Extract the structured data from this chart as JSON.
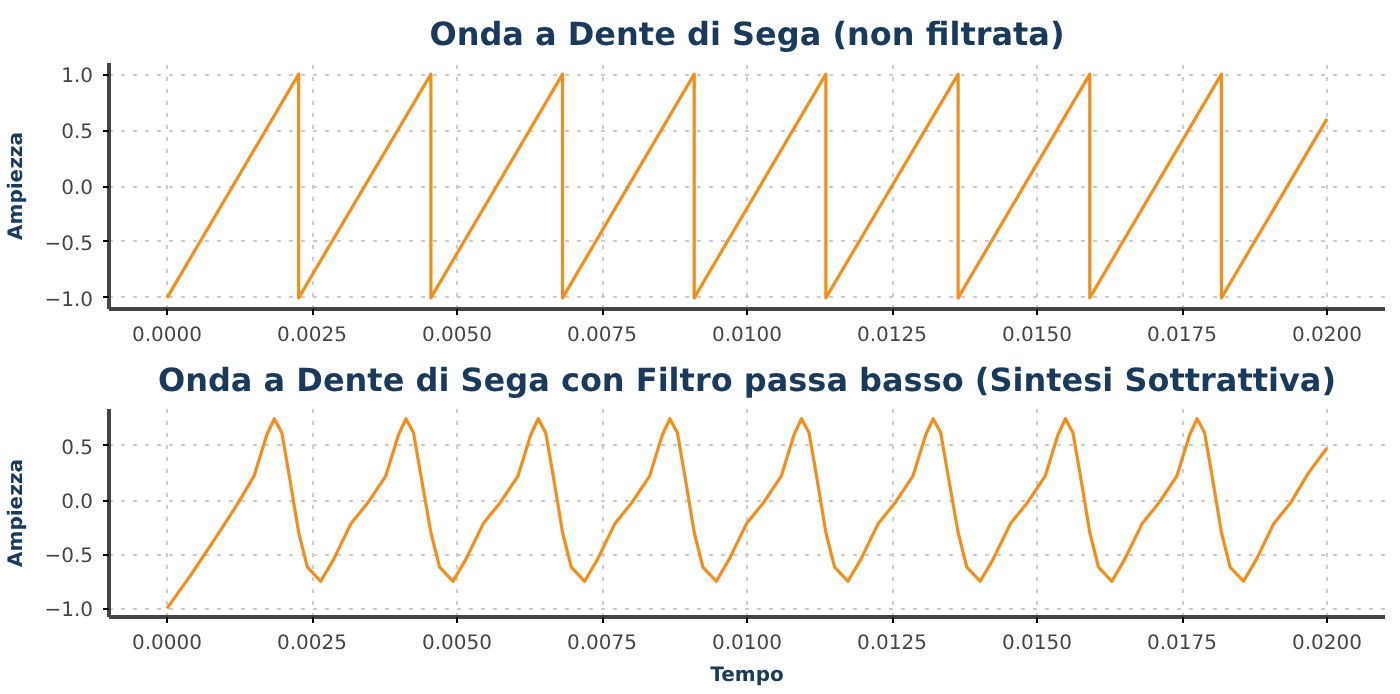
{
  "chart_data": [
    {
      "type": "line",
      "title": "Onda a Dente di Sega (non filtrata)",
      "ylabel": "Ampiezza",
      "grid": true,
      "line_style": "solid",
      "xlim": [
        -0.001,
        0.021
      ],
      "ylim": [
        -1.1,
        1.1
      ],
      "xticks": [
        {
          "value": 0,
          "label": "0.0000"
        },
        {
          "value": 0.0025,
          "label": "0.0025"
        },
        {
          "value": 0.005,
          "label": "0.0050"
        },
        {
          "value": 0.0075,
          "label": "0.0075"
        },
        {
          "value": 0.01,
          "label": "0.0100"
        },
        {
          "value": 0.0125,
          "label": "0.0125"
        },
        {
          "value": 0.015,
          "label": "0.0150"
        },
        {
          "value": 0.0175,
          "label": "0.0175"
        },
        {
          "value": 0.02,
          "label": "0.0200"
        }
      ],
      "yticks": [
        {
          "value": -1,
          "label": "−1.0"
        },
        {
          "value": -0.5,
          "label": "−0.5"
        },
        {
          "value": 0,
          "label": "0.0"
        },
        {
          "value": 0.5,
          "label": "0.5"
        },
        {
          "value": 1,
          "label": "1.0"
        }
      ],
      "series": [
        {
          "color": "#f28e1c",
          "x": [
            0,
            0.00227,
            0.00227,
            0.00455,
            0.00455,
            0.00682,
            0.00682,
            0.00909,
            0.00909,
            0.01136,
            0.01136,
            0.01364,
            0.01364,
            0.01591,
            0.01591,
            0.01818,
            0.01818,
            0.02
          ],
          "values": [
            -1,
            1,
            -1,
            1,
            -1,
            1,
            -1,
            1,
            -1,
            1,
            -1,
            1,
            -1,
            1,
            -1,
            1,
            -1,
            0.6
          ]
        }
      ]
    },
    {
      "type": "line",
      "title": "Onda a Dente di Sega con Filtro passa basso (Sintesi Sottrattiva)",
      "xlabel": "Tempo",
      "ylabel": "Ampiezza",
      "grid": true,
      "line_style": "solid",
      "xlim": [
        -0.001,
        0.021
      ],
      "ylim": [
        -1.08,
        0.84
      ],
      "xticks": [
        {
          "value": 0,
          "label": "0.0000"
        },
        {
          "value": 0.0025,
          "label": "0.0025"
        },
        {
          "value": 0.005,
          "label": "0.0050"
        },
        {
          "value": 0.0075,
          "label": "0.0075"
        },
        {
          "value": 0.01,
          "label": "0.0100"
        },
        {
          "value": 0.0125,
          "label": "0.0125"
        },
        {
          "value": 0.015,
          "label": "0.0150"
        },
        {
          "value": 0.0175,
          "label": "0.0175"
        },
        {
          "value": 0.02,
          "label": "0.0200"
        }
      ],
      "yticks": [
        {
          "value": -1,
          "label": "−1.0"
        },
        {
          "value": -0.5,
          "label": "−0.5"
        },
        {
          "value": 0,
          "label": "0.0"
        },
        {
          "value": 0.5,
          "label": "0.5"
        }
      ],
      "series": [
        {
          "color": "#f28e1c",
          "x": [
            0,
            0.0004,
            0.0008,
            0.0012,
            0.0015,
            0.00172,
            0.00185,
            0.00198,
            0.0021,
            0.00227,
            0.00242,
            0.00265,
            0.00287,
            0.00317,
            0.00347,
            0.00377,
            0.00399,
            0.00412,
            0.00425,
            0.00437,
            0.00455,
            0.0047,
            0.00493,
            0.00515,
            0.00545,
            0.00575,
            0.00605,
            0.00627,
            0.0064,
            0.00653,
            0.00665,
            0.00682,
            0.00697,
            0.0072,
            0.00742,
            0.00772,
            0.00802,
            0.00832,
            0.00854,
            0.00867,
            0.0088,
            0.00892,
            0.00909,
            0.00924,
            0.00947,
            0.00969,
            0.00999,
            0.01029,
            0.01059,
            0.01081,
            0.01094,
            0.01107,
            0.01119,
            0.01136,
            0.01151,
            0.01174,
            0.01196,
            0.01226,
            0.01256,
            0.01286,
            0.01308,
            0.01321,
            0.01334,
            0.01346,
            0.01364,
            0.01379,
            0.01402,
            0.01424,
            0.01454,
            0.01484,
            0.01514,
            0.01536,
            0.01549,
            0.01562,
            0.01574,
            0.01591,
            0.01606,
            0.01629,
            0.01651,
            0.01681,
            0.01711,
            0.01741,
            0.01763,
            0.01776,
            0.01789,
            0.01801,
            0.01818,
            0.01833,
            0.01856,
            0.01878,
            0.01908,
            0.01938,
            0.01968,
            0.02
          ],
          "values": [
            -1,
            -0.7,
            -0.38,
            -0.05,
            0.22,
            0.6,
            0.75,
            0.62,
            0.25,
            -0.3,
            -0.62,
            -0.75,
            -0.55,
            -0.22,
            -0.02,
            0.22,
            0.6,
            0.75,
            0.62,
            0.25,
            -0.3,
            -0.62,
            -0.75,
            -0.55,
            -0.22,
            -0.02,
            0.22,
            0.6,
            0.75,
            0.62,
            0.25,
            -0.3,
            -0.62,
            -0.75,
            -0.55,
            -0.22,
            -0.02,
            0.22,
            0.6,
            0.75,
            0.62,
            0.25,
            -0.3,
            -0.62,
            -0.75,
            -0.55,
            -0.22,
            -0.02,
            0.22,
            0.6,
            0.75,
            0.62,
            0.25,
            -0.3,
            -0.62,
            -0.75,
            -0.55,
            -0.22,
            -0.02,
            0.22,
            0.6,
            0.75,
            0.62,
            0.25,
            -0.3,
            -0.62,
            -0.75,
            -0.55,
            -0.22,
            -0.02,
            0.22,
            0.6,
            0.75,
            0.62,
            0.25,
            -0.3,
            -0.62,
            -0.75,
            -0.55,
            -0.22,
            -0.02,
            0.22,
            0.6,
            0.75,
            0.62,
            0.25,
            -0.3,
            -0.62,
            -0.75,
            -0.55,
            -0.22,
            -0.02,
            0.25,
            0.48
          ]
        }
      ]
    }
  ]
}
